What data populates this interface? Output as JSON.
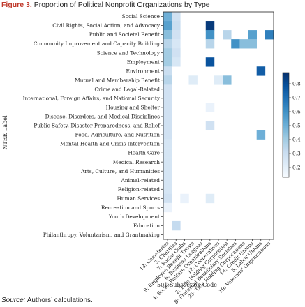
{
  "figure": {
    "number": "Figure 3.",
    "title": "Proportion of Political Nonprofit Organizations by Type",
    "source_label": "Source:",
    "source_text": "Authors’ calculations."
  },
  "chart_data": {
    "type": "heatmap",
    "title": "",
    "xlabel": "501 Subsection Code",
    "ylabel": "NTEE Label",
    "x_categories": [
      "13: Cemeteries",
      "3: Charities",
      "7: Social Clubs",
      "9: Employee Benefit Trusts",
      "6: Business Leagues",
      "4: Social Welfare Organizations",
      "12: Cooperatives",
      "2: Title Holding Corporation",
      "8: Fraternal Beneficiary Societies",
      "25: Title Holding Corporations",
      "14: Credit Unions",
      "5: Labor Unions",
      "19: Veterans' Organizations"
    ],
    "y_categories": [
      "Social Science",
      "Civil Rights, Social Action, and Advocacy",
      "Public  and Societal Benefit",
      "Community Improvement and Capacity Building",
      "Science and Technology",
      "Employment",
      "Environment",
      "Mutual and Membership Benefit",
      "Crime and Legal-Related",
      "International, Foreign Affairs, and National Security",
      "Housing and Shelter",
      "Disease, Disorders, and Medical Disciplines",
      "Public Safety, Disaster Preparedness, and Relief",
      "Food, Agriculture, and Nutrition",
      "Mental Health and Crisis Intervention",
      "Health Care",
      "Medical Research",
      "Arts, Culture, and Humanities",
      "Animal-related",
      "Religion-related",
      "Human Services",
      "Recreation and Sports",
      "Youth Development",
      "Education",
      "Philanthropy, Voluntarism, and Grantmaking"
    ],
    "cells": [
      [
        0,
        0,
        0.5
      ],
      [
        1,
        0,
        0.28
      ],
      [
        0,
        1,
        0.55
      ],
      [
        1,
        1,
        0.3
      ],
      [
        5,
        1,
        0.85
      ],
      [
        0,
        2,
        0.45
      ],
      [
        1,
        2,
        0.28
      ],
      [
        5,
        2,
        0.6
      ],
      [
        7,
        2,
        0.35
      ],
      [
        10,
        2,
        0.55
      ],
      [
        12,
        2,
        0.65
      ],
      [
        0,
        3,
        0.35
      ],
      [
        1,
        3,
        0.25
      ],
      [
        5,
        3,
        0.35
      ],
      [
        8,
        3,
        0.6
      ],
      [
        9,
        3,
        0.45
      ],
      [
        10,
        3,
        0.45
      ],
      [
        0,
        4,
        0.4
      ],
      [
        1,
        4,
        0.28
      ],
      [
        0,
        5,
        0.4
      ],
      [
        1,
        5,
        0.25
      ],
      [
        5,
        5,
        0.78
      ],
      [
        0,
        6,
        0.3
      ],
      [
        11,
        6,
        0.75
      ],
      [
        0,
        7,
        0.35
      ],
      [
        3,
        7,
        0.22
      ],
      [
        6,
        7,
        0.22
      ],
      [
        7,
        7,
        0.45
      ],
      [
        0,
        8,
        0.28
      ],
      [
        0,
        9,
        0.28
      ],
      [
        0,
        10,
        0.28
      ],
      [
        5,
        10,
        0.18
      ],
      [
        0,
        11,
        0.28
      ],
      [
        0,
        12,
        0.28
      ],
      [
        5,
        12,
        0.28
      ],
      [
        0,
        13,
        0.28
      ],
      [
        11,
        13,
        0.5
      ],
      [
        0,
        14,
        0.26
      ],
      [
        0,
        15,
        0.26
      ],
      [
        0,
        16,
        0.26
      ],
      [
        0,
        17,
        0.26
      ],
      [
        0,
        18,
        0.26
      ],
      [
        0,
        19,
        0.26
      ],
      [
        0,
        20,
        0.28
      ],
      [
        2,
        20,
        0.18
      ],
      [
        5,
        20,
        0.22
      ],
      [
        0,
        21,
        0.18
      ],
      [
        1,
        23,
        0.32
      ]
    ],
    "colorbar": {
      "range": [
        0.13,
        0.88
      ],
      "ticks": [
        "0.2",
        "0.3",
        "0.4",
        "0.5",
        "0.6",
        "0.7",
        "0.8"
      ],
      "colors": [
        "#f7fbff",
        "#deebf7",
        "#c6dbef",
        "#9ecae1",
        "#6baed6",
        "#4292c6",
        "#2171b5",
        "#08519c",
        "#08306b"
      ]
    }
  }
}
